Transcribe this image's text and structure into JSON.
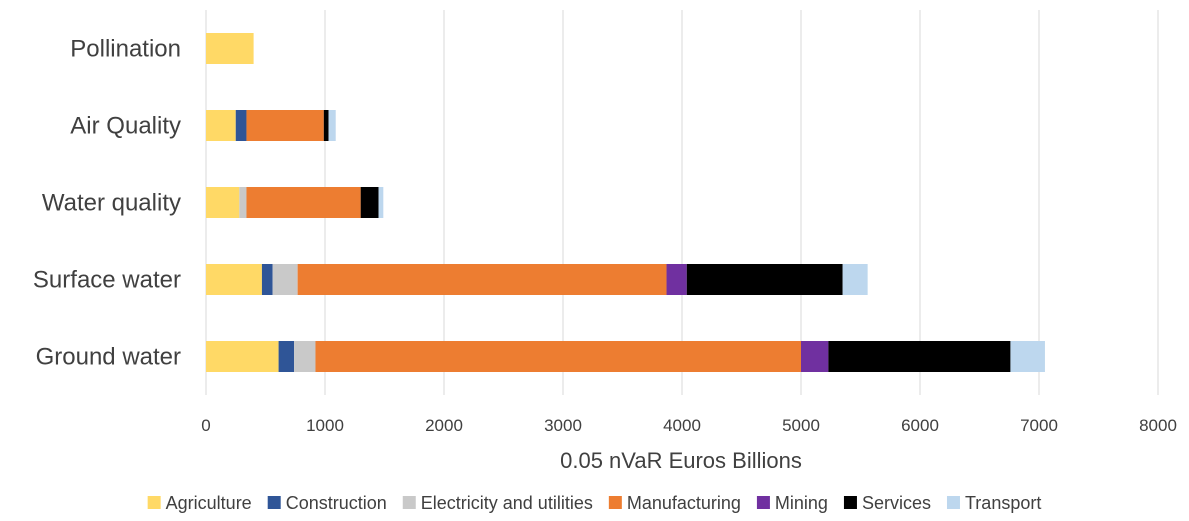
{
  "chart_data": {
    "type": "bar",
    "orientation": "horizontal",
    "stacked": true,
    "title": "",
    "xlabel": "0.05 nVaR Euros Billions",
    "ylabel": "",
    "xlim": [
      0,
      8000
    ],
    "x_ticks": [
      0,
      1000,
      2000,
      3000,
      4000,
      5000,
      6000,
      7000,
      8000
    ],
    "grid": "vertical",
    "legend_position": "bottom",
    "categories": [
      "Pollination",
      "Air Quality",
      "Water quality",
      "Surface water",
      "Ground water"
    ],
    "series": [
      {
        "name": "Agriculture",
        "color": "#FFD966",
        "values": [
          400,
          250,
          280,
          470,
          610
        ]
      },
      {
        "name": "Construction",
        "color": "#2F5597",
        "values": [
          0,
          90,
          0,
          90,
          130
        ]
      },
      {
        "name": "Electricity and utilities",
        "color": "#C9C9C9",
        "values": [
          0,
          0,
          60,
          210,
          180
        ]
      },
      {
        "name": "Manufacturing",
        "color": "#ED7D31",
        "values": [
          0,
          650,
          960,
          3100,
          4080
        ]
      },
      {
        "name": "Mining",
        "color": "#7030A0",
        "values": [
          0,
          0,
          0,
          170,
          230
        ]
      },
      {
        "name": "Services",
        "color": "#000000",
        "values": [
          0,
          40,
          150,
          1310,
          1530
        ]
      },
      {
        "name": "Transport",
        "color": "#BDD7EE",
        "values": [
          0,
          60,
          40,
          210,
          290
        ]
      }
    ]
  }
}
